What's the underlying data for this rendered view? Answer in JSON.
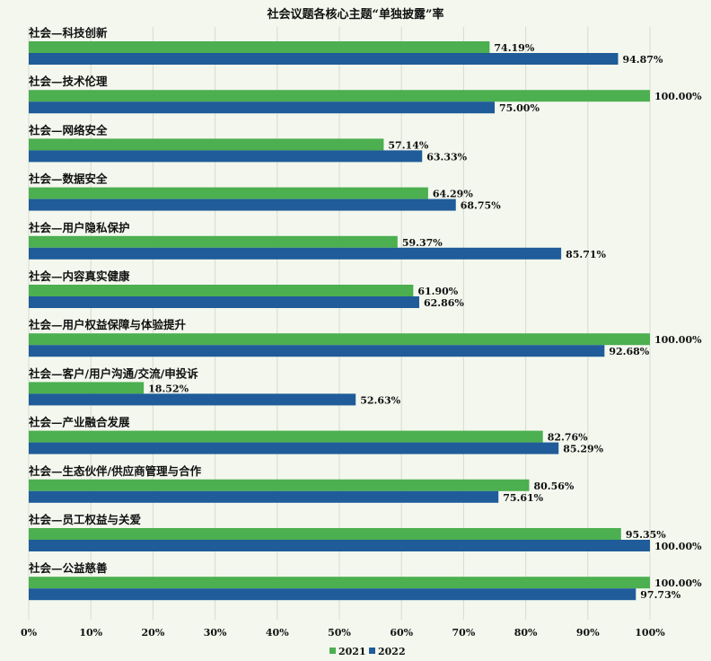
{
  "chart_data": {
    "type": "bar",
    "orientation": "horizontal",
    "title": "社会议题各核心主题“单独披露”率",
    "categories": [
      "社会—科技创新",
      "社会—技术伦理",
      "社会—网络安全",
      "社会—数据安全",
      "社会—用户隐私保护",
      "社会—内容真实健康",
      "社会—用户权益保障与体验提升",
      "社会—客户/用户沟通/交流/申投诉",
      "社会—产业融合发展",
      "社会—生态伙伴/供应商管理与合作",
      "社会—员工权益与关爱",
      "社会—公益慈善"
    ],
    "series": [
      {
        "name": "2021",
        "color": "#4caf50",
        "values": [
          74.19,
          100.0,
          57.14,
          64.29,
          59.37,
          61.9,
          100.0,
          18.52,
          82.76,
          80.56,
          95.35,
          100.0
        ],
        "labels": [
          "74.19%",
          "100.00%",
          "57.14%",
          "64.29%",
          "59.37%",
          "61.90%",
          "100.00%",
          "18.52%",
          "82.76%",
          "80.56%",
          "95.35%",
          "100.00%"
        ]
      },
      {
        "name": "2022",
        "color": "#1f5c99",
        "values": [
          94.87,
          75.0,
          63.33,
          68.75,
          85.71,
          62.86,
          92.68,
          52.63,
          85.29,
          75.61,
          100.0,
          97.73
        ],
        "labels": [
          "94.87%",
          "75.00%",
          "63.33%",
          "68.75%",
          "85.71%",
          "62.86%",
          "92.68%",
          "52.63%",
          "85.29%",
          "75.61%",
          "100.00%",
          "97.73%"
        ]
      }
    ],
    "xlim": [
      0,
      100
    ],
    "xticks": [
      "0%",
      "10%",
      "20%",
      "30%",
      "40%",
      "50%",
      "60%",
      "70%",
      "80%",
      "90%",
      "100%"
    ],
    "grid": true,
    "legend_position": "bottom"
  }
}
